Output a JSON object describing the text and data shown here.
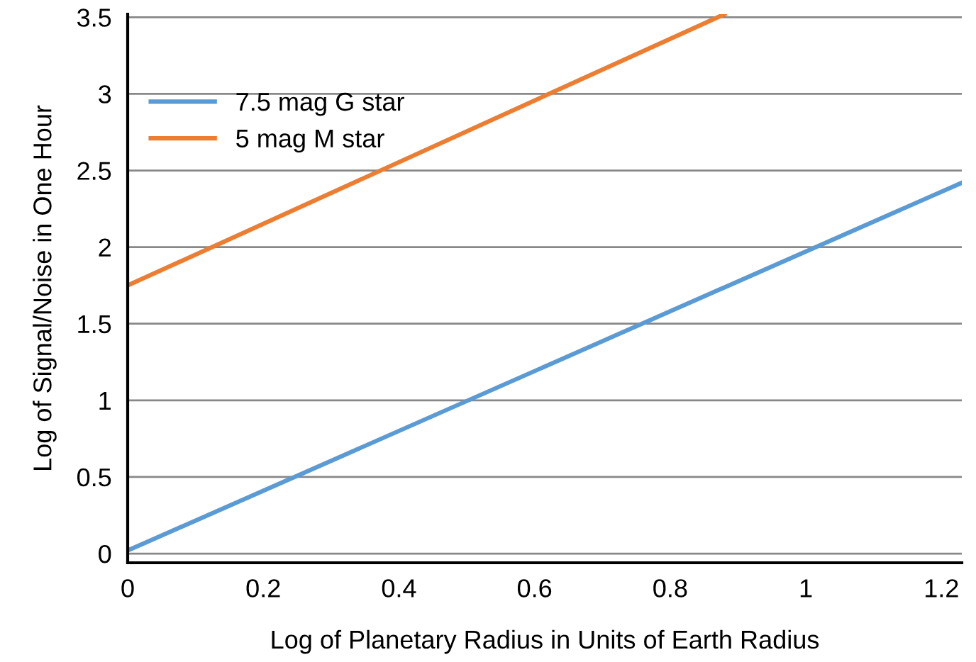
{
  "chart_data": {
    "type": "line",
    "xlabel": "Log of Planetary Radius in Units of Earth Radius",
    "ylabel": "Log of Signal/Noise in One Hour",
    "series": [
      {
        "name": "7.5 mag G star",
        "color": "#5b9bd5",
        "x": [
          0,
          1.23
        ],
        "values": [
          0.02,
          2.42
        ]
      },
      {
        "name": "5 mag M star",
        "color": "#ed7d31",
        "x": [
          0,
          0.88
        ],
        "values": [
          1.75,
          3.52
        ]
      }
    ],
    "xlim": [
      0,
      1.23
    ],
    "xticks": [
      0,
      0.2,
      0.4,
      0.6,
      0.8,
      1,
      1.2
    ],
    "ylim": [
      -0.06,
      3.52
    ],
    "yticks": [
      0,
      0.5,
      1,
      1.5,
      2,
      2.5,
      3,
      3.5
    ],
    "grid": "y",
    "legend": "top left"
  }
}
